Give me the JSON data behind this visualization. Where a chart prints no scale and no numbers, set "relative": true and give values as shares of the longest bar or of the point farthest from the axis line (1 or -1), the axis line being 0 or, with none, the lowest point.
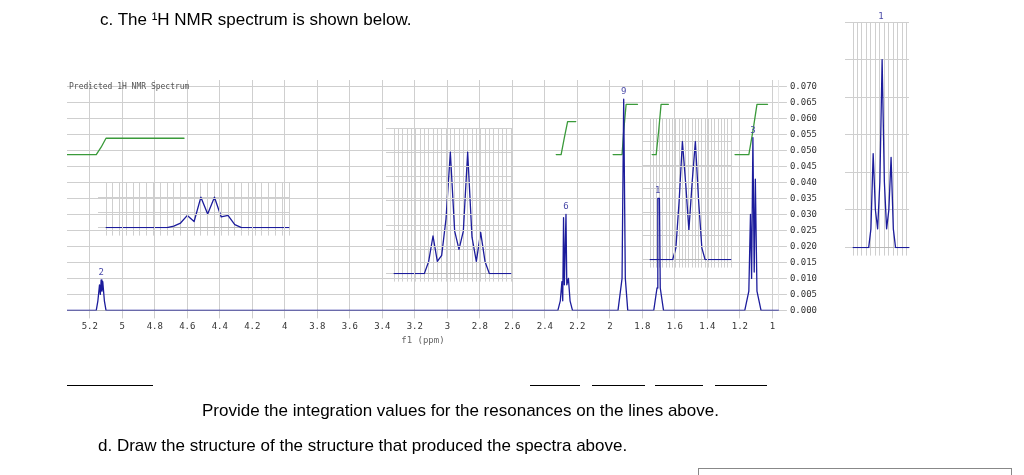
{
  "chart_data": [
    {
      "type": "line",
      "title": "c. The ¹H NMR spectrum is shown below.",
      "subtitle": "Predicted 1H NMR Spectrum",
      "xlabel": "f1 (ppm)",
      "xlim": [
        5.34,
        0.96
      ],
      "xticks": [
        5.2,
        5.0,
        4.8,
        4.6,
        4.4,
        4.2,
        4.0,
        3.8,
        3.6,
        3.4,
        3.2,
        3.0,
        2.8,
        2.6,
        2.4,
        2.2,
        2.0,
        1.8,
        1.6,
        1.4,
        1.2,
        1.0
      ],
      "ylim": [
        0,
        0.072
      ],
      "yticks": [
        {
          "value": 0,
          "label": "0.000"
        },
        0.005,
        {
          "value": 0.01,
          "label": "0.010"
        },
        0.015,
        {
          "value": 0.02,
          "label": "0.020"
        },
        0.025,
        {
          "value": 0.03,
          "label": "0.030"
        },
        0.035,
        {
          "value": 0.04,
          "label": "0.040"
        },
        0.045,
        {
          "value": 0.05,
          "label": "0.050"
        },
        0.055,
        {
          "value": 0.06,
          "label": "0.060"
        },
        0.065,
        {
          "value": 0.07,
          "label": "0.070"
        }
      ],
      "grid": true,
      "series": [
        {
          "color": "#1c1c9c",
          "x": [
            5.34,
            5.16,
            5.15,
            5.14,
            5.135,
            5.13,
            5.125,
            5.12,
            5.11,
            5.1,
            2.32,
            2.305,
            2.295,
            2.29,
            2.285,
            2.28,
            2.27,
            2.265,
            2.255,
            2.245,
            2.23,
            1.95,
            1.925,
            1.915,
            1.905,
            1.89,
            1.73,
            1.71,
            1.705,
            1.695,
            1.69,
            1.67,
            1.17,
            1.145,
            1.135,
            1.128,
            1.12,
            1.112,
            1.105,
            1.095,
            1.07,
            0.96
          ],
          "values": [
            0,
            0,
            0.003,
            0.008,
            0.005,
            0.0095,
            0.006,
            0.009,
            0.003,
            0,
            0,
            0.003,
            0.009,
            0.003,
            0.029,
            0.008,
            0.03,
            0.008,
            0.01,
            0.003,
            0,
            0,
            0.01,
            0.066,
            0.01,
            0,
            0,
            0.007,
            0.035,
            0.035,
            0.007,
            0,
            0,
            0.006,
            0.03,
            0.01,
            0.054,
            0.012,
            0.041,
            0.006,
            0,
            0
          ]
        },
        {
          "color": "#3a9a3a",
          "x": [
            5.34,
            5.16,
            5.13,
            5.1,
            4.62
          ],
          "values": [
            0.0487,
            0.0487,
            0.051,
            0.0538,
            0.0538
          ]
        },
        {
          "color": "#3a9a3a",
          "x": [
            2.33,
            2.3,
            2.28,
            2.26,
            2.21
          ],
          "values": [
            0.0487,
            0.0487,
            0.054,
            0.059,
            0.059
          ]
        },
        {
          "color": "#3a9a3a",
          "x": [
            1.98,
            1.925,
            1.915,
            1.9,
            1.83
          ],
          "values": [
            0.0487,
            0.0487,
            0.056,
            0.0644,
            0.0644
          ]
        },
        {
          "color": "#3a9a3a",
          "x": [
            1.74,
            1.715,
            1.7,
            1.685,
            1.64
          ],
          "values": [
            0.0487,
            0.0487,
            0.056,
            0.0644,
            0.0644
          ]
        },
        {
          "color": "#3a9a3a",
          "x": [
            1.23,
            1.145,
            1.12,
            1.095,
            1.03
          ],
          "values": [
            0.0487,
            0.0487,
            0.056,
            0.0644,
            0.0644
          ]
        }
      ],
      "annotations": [
        "2",
        "6",
        "9",
        "1",
        "3",
        "Provide the integration values for the resonances on the lines above.",
        "d. Draw the structure of the structure that produced the spectra above."
      ]
    },
    {
      "type": "line",
      "relative": true,
      "grid": true,
      "categories": [
        null,
        null,
        null,
        null,
        null,
        null,
        null,
        null,
        null,
        null,
        null,
        null,
        null,
        null,
        null,
        null,
        null,
        null,
        null,
        null,
        null,
        null,
        null,
        null,
        null,
        null,
        null,
        null
      ],
      "series": [
        {
          "color": "#1c1c9c",
          "values": [
            0,
            0,
            0,
            0,
            0,
            0,
            0,
            0,
            0,
            0,
            0.05,
            0.15,
            0.4,
            0.2,
            1,
            0.45,
            1,
            0.35,
            0.4,
            0.1,
            0,
            0,
            0,
            0,
            0,
            0,
            0,
            0
          ]
        }
      ]
    },
    {
      "type": "line",
      "relative": true,
      "grid": true,
      "categories": [
        null,
        null,
        null,
        null,
        null,
        null,
        null,
        null,
        null,
        null,
        null,
        null,
        null,
        null,
        null,
        null,
        null,
        null,
        null,
        null,
        null,
        null,
        null,
        null,
        null,
        null,
        null,
        null
      ],
      "series": [
        {
          "color": "#1c1c9c",
          "values": [
            0,
            0,
            0,
            0,
            0,
            0,
            0,
            0,
            0.1,
            0.31,
            0.1,
            0.15,
            0.45,
            1,
            0.35,
            0.2,
            0.35,
            1,
            0.3,
            0.1,
            0.34,
            0.1,
            0,
            0,
            0,
            0,
            0,
            0
          ]
        }
      ]
    },
    {
      "type": "line",
      "relative": true,
      "grid": true,
      "categories": [
        null,
        null,
        null,
        null,
        null,
        null,
        null,
        null,
        null,
        null,
        null,
        null,
        null,
        null,
        null,
        null,
        null,
        null,
        null,
        null,
        null,
        null,
        null,
        null,
        null,
        null
      ],
      "series": [
        {
          "color": "#1c1c9c",
          "values": [
            0,
            0,
            0,
            0,
            0,
            0,
            0,
            0,
            0.1,
            0.5,
            1,
            0.65,
            0.25,
            0.65,
            1,
            0.5,
            0.1,
            0,
            0,
            0,
            0,
            0,
            0,
            0,
            0,
            0
          ]
        }
      ]
    },
    {
      "type": "line",
      "relative": true,
      "grid": true,
      "annotations": [
        "1"
      ],
      "categories": [
        null,
        null,
        null,
        null,
        null,
        null,
        null,
        null,
        null,
        null,
        null,
        null,
        null,
        null,
        null,
        null,
        null,
        null,
        null,
        null,
        null,
        null,
        null,
        null,
        null,
        null
      ],
      "series": [
        {
          "color": "#1c1c9c",
          "values": [
            0,
            0,
            0,
            0,
            0,
            0,
            0,
            0,
            0.1,
            0.5,
            0.2,
            0.1,
            0.35,
            1,
            0.35,
            0.1,
            0.2,
            0.48,
            0.1,
            0,
            0,
            0,
            0,
            0,
            0,
            0
          ]
        }
      ]
    }
  ]
}
